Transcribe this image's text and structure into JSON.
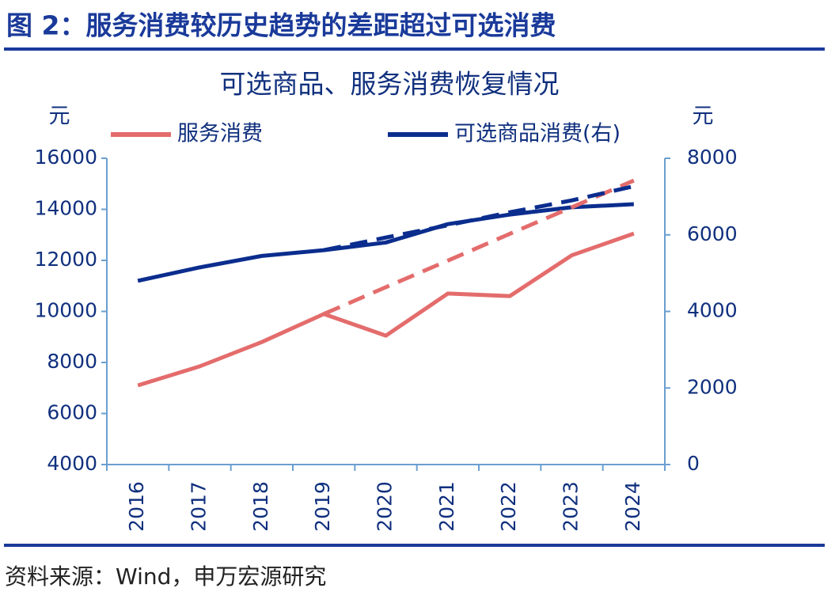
{
  "header": {
    "title": "图 2：服务消费较历史趋势的差距超过可选消费"
  },
  "chart_data": {
    "type": "line",
    "title": "可选商品、服务消费恢复情况",
    "y_label": "元",
    "y2_label": "元",
    "categories": [
      "2016",
      "2017",
      "2018",
      "2019",
      "2020",
      "2021",
      "2022",
      "2023",
      "2024"
    ],
    "series": [
      {
        "name": "服务消费",
        "color": "#e46c6c",
        "values": [
          7100,
          7850,
          8800,
          9900,
          9050,
          10700,
          10600,
          12200,
          13050
        ]
      },
      {
        "name": "可选商品消费(右)",
        "color": "#0b2d8e",
        "axis": "y2",
        "values": [
          4800,
          5150,
          5450,
          5600,
          5800,
          6280,
          6530,
          6720,
          6800
        ]
      },
      {
        "color": "#e46c6c",
        "dashed": true,
        "values": [
          null,
          null,
          null,
          9900,
          10950,
          11990,
          13040,
          14080,
          15130
        ]
      },
      {
        "color": "#0b2d8e",
        "dashed": true,
        "axis": "y2",
        "values": [
          null,
          null,
          null,
          5600,
          5930,
          6250,
          6590,
          6900,
          7270
        ]
      }
    ],
    "ylim": [
      4000,
      16000
    ],
    "yticks": [
      4000,
      6000,
      8000,
      10000,
      12000,
      14000,
      16000
    ],
    "y2lim": [
      0,
      8000
    ],
    "y2ticks": [
      0,
      2000,
      4000,
      6000,
      8000
    ],
    "legend": "top"
  },
  "footer": {
    "source": "资料来源：Wind，申万宏源研究"
  }
}
